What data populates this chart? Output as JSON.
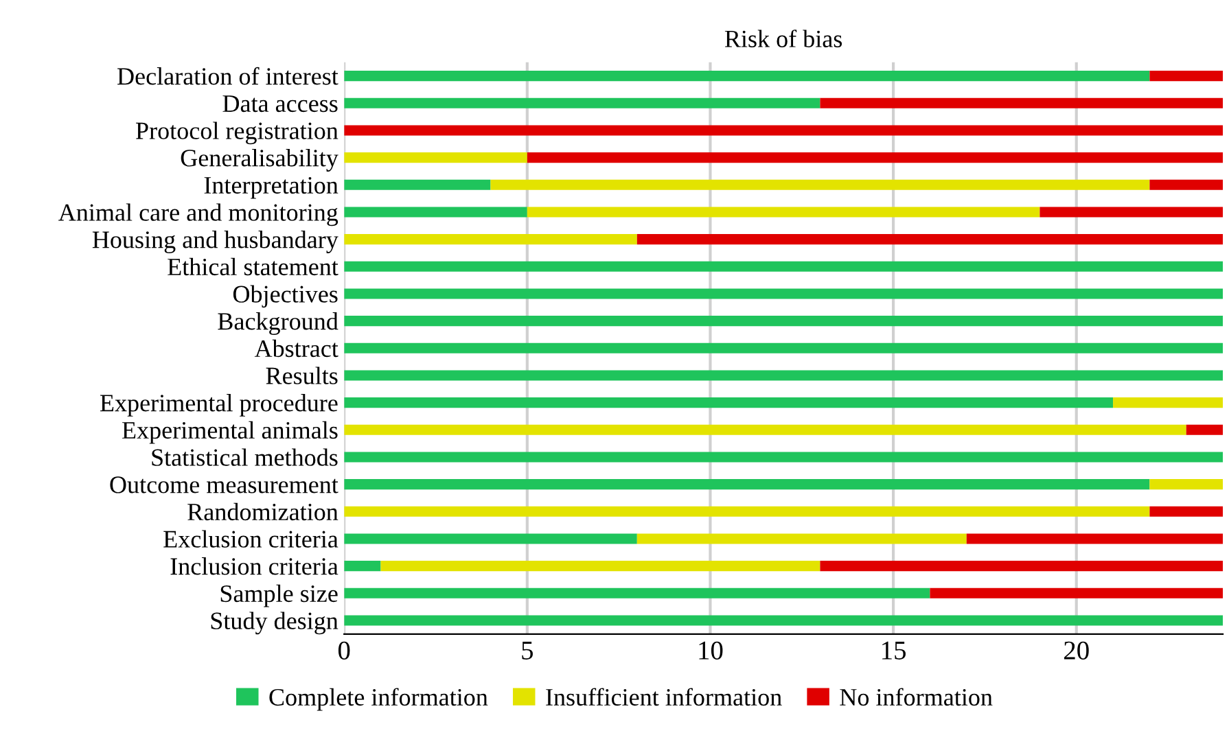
{
  "chart_data": {
    "type": "bar",
    "orientation": "horizontal",
    "stacked": true,
    "title": "Risk of bias",
    "categories": [
      "Declaration of interest",
      "Data access",
      "Protocol registration",
      "Generalisability",
      "Interpretation",
      "Animal care and monitoring",
      "Housing and husbandary",
      "Ethical statement",
      "Objectives",
      "Background",
      "Abstract",
      "Results",
      "Experimental procedure",
      "Experimental animals",
      "Statistical methods",
      "Outcome measurement",
      "Randomization",
      "Exclusion criteria",
      "Inclusion criteria",
      "Sample size",
      "Study design"
    ],
    "series": [
      {
        "name": "Complete information",
        "color": "#1fc45c",
        "values": [
          22,
          13,
          0,
          0,
          4,
          5,
          0,
          24,
          24,
          24,
          24,
          24,
          21,
          0,
          24,
          22,
          0,
          8,
          1,
          16,
          24
        ]
      },
      {
        "name": "Insufficient information",
        "color": "#e3e300",
        "values": [
          0,
          0,
          0,
          5,
          18,
          14,
          8,
          0,
          0,
          0,
          0,
          0,
          3,
          23,
          0,
          2,
          22,
          9,
          12,
          0,
          0
        ]
      },
      {
        "name": "No information",
        "color": "#e00000",
        "values": [
          2,
          11,
          24,
          19,
          2,
          5,
          16,
          0,
          0,
          0,
          0,
          0,
          0,
          1,
          0,
          0,
          2,
          7,
          11,
          8,
          0
        ]
      }
    ],
    "xlim": [
      0,
      24
    ],
    "xticks": [
      0,
      5,
      10,
      15,
      20
    ],
    "grid": "x",
    "legend": "bottom"
  }
}
